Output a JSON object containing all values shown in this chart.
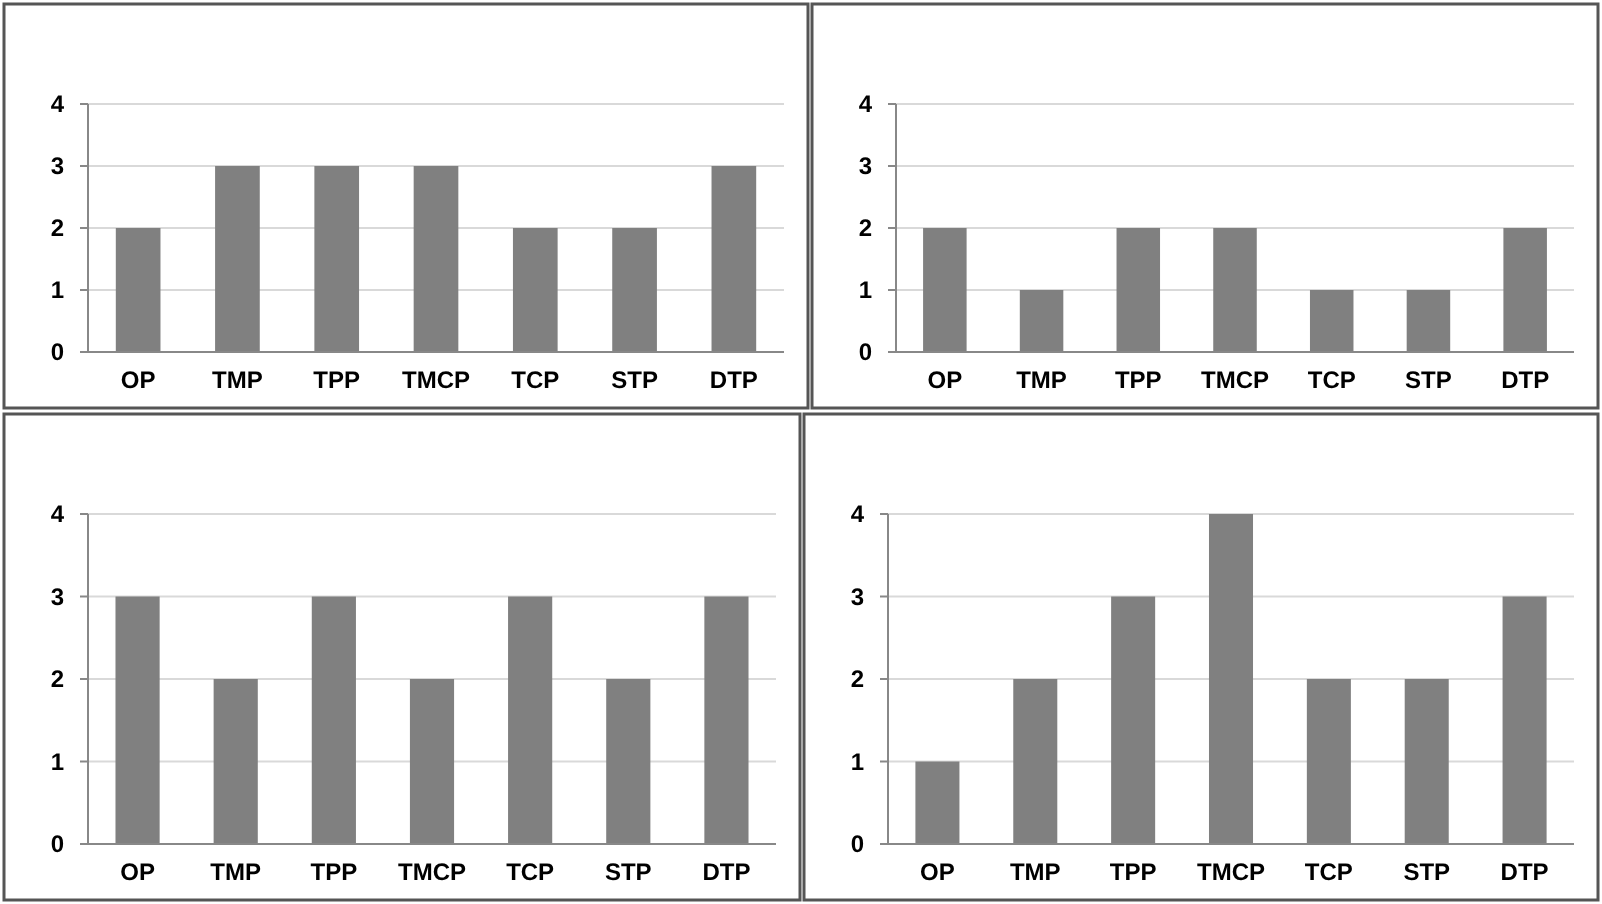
{
  "chart_data": [
    {
      "type": "bar",
      "categories": [
        "OP",
        "TMP",
        "TPP",
        "TMCP",
        "TCP",
        "STP",
        "DTP"
      ],
      "values": [
        2,
        3,
        3,
        3,
        2,
        2,
        3
      ],
      "color": "#808080",
      "ylim": [
        0,
        4
      ],
      "yticks": [
        0,
        1,
        2,
        3,
        4
      ],
      "grid": "y"
    },
    {
      "type": "bar",
      "categories": [
        "OP",
        "TMP",
        "TPP",
        "TMCP",
        "TCP",
        "STP",
        "DTP"
      ],
      "values": [
        2,
        1,
        2,
        2,
        1,
        1,
        2
      ],
      "color": "#808080",
      "ylim": [
        0,
        4
      ],
      "yticks": [
        0,
        1,
        2,
        3,
        4
      ],
      "grid": "y"
    },
    {
      "type": "bar",
      "categories": [
        "OP",
        "TMP",
        "TPP",
        "TMCP",
        "TCP",
        "STP",
        "DTP"
      ],
      "values": [
        3,
        2,
        3,
        2,
        3,
        2,
        3
      ],
      "color": "#808080",
      "ylim": [
        0,
        4
      ],
      "yticks": [
        0,
        1,
        2,
        3,
        4
      ],
      "grid": "y"
    },
    {
      "type": "bar",
      "categories": [
        "OP",
        "TMP",
        "TPP",
        "TMCP",
        "TCP",
        "STP",
        "DTP"
      ],
      "values": [
        1,
        2,
        3,
        4,
        2,
        2,
        3
      ],
      "color": "#808080",
      "ylim": [
        0,
        4
      ],
      "yticks": [
        0,
        1,
        2,
        3,
        4
      ],
      "grid": "y"
    }
  ]
}
